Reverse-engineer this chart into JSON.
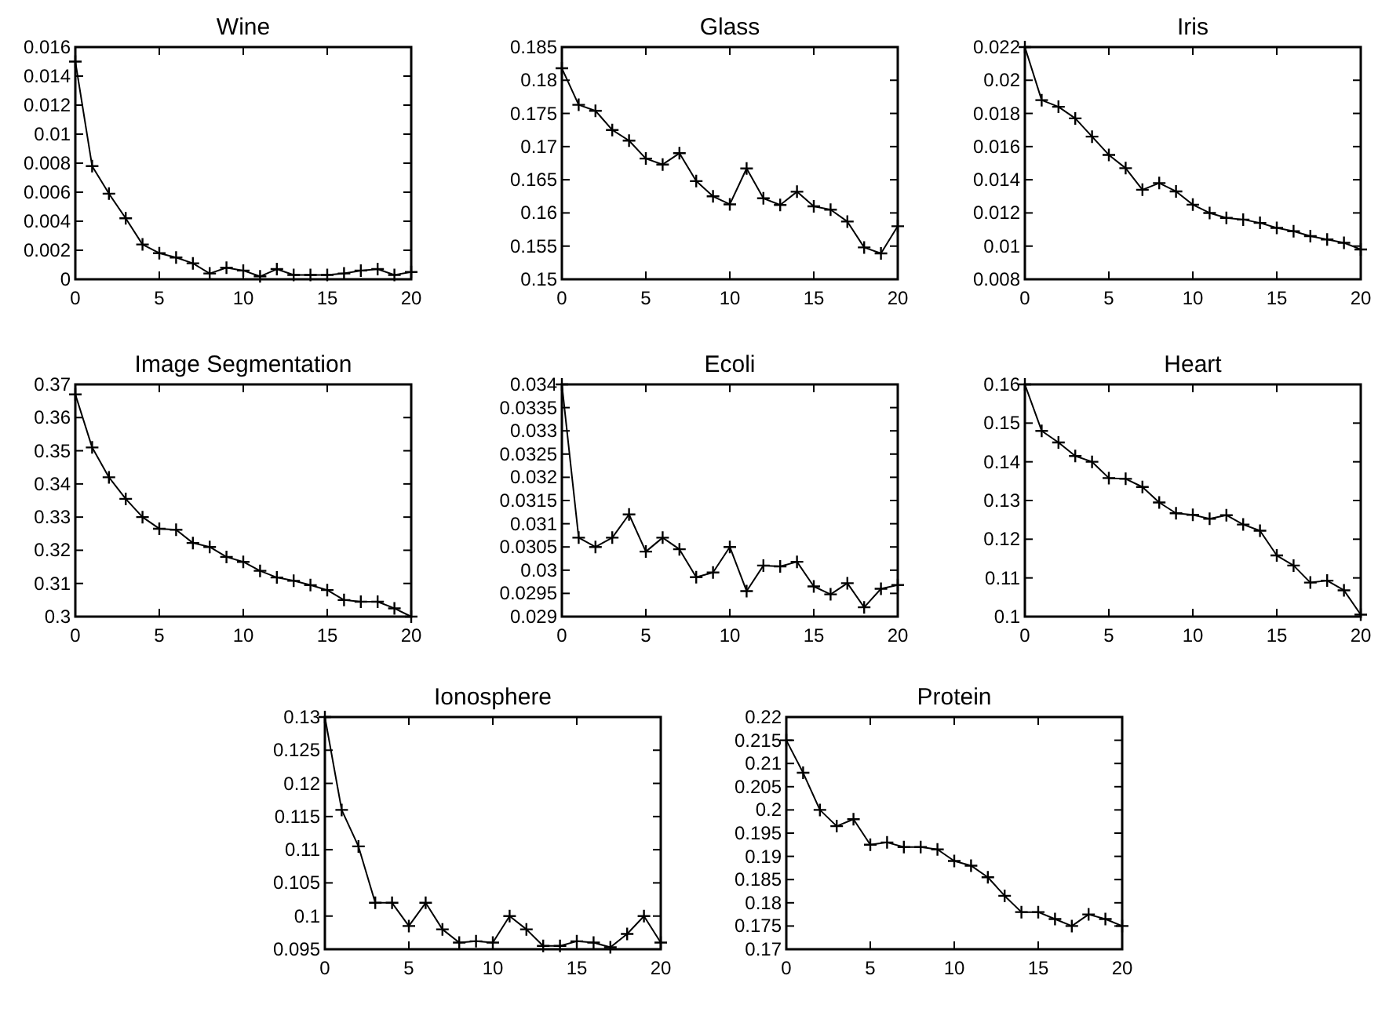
{
  "chart_data": [
    {
      "type": "line",
      "title": "Wine",
      "x": [
        0,
        1,
        2,
        3,
        4,
        5,
        6,
        7,
        8,
        9,
        10,
        11,
        12,
        13,
        14,
        15,
        16,
        17,
        18,
        19,
        20
      ],
      "series": [
        {
          "color": "#000000",
          "values": [
            0.015,
            0.0078,
            0.0059,
            0.0042,
            0.0024,
            0.0018,
            0.0015,
            0.0011,
            0.0004,
            0.0008,
            0.0006,
            0.0002,
            0.0007,
            0.0003,
            0.0003,
            0.0003,
            0.0004,
            0.0006,
            0.0007,
            0.0003,
            0.0005
          ]
        }
      ],
      "xlim": [
        0,
        20
      ],
      "xticks": [
        0,
        5,
        10,
        15,
        20
      ],
      "ylim": [
        0,
        0.016
      ],
      "yticks": [
        0,
        0.002,
        0.004,
        0.006,
        0.008,
        0.01,
        0.012,
        0.014,
        0.016
      ],
      "marker": "cross",
      "line_style": "solid",
      "grid": false
    },
    {
      "type": "line",
      "title": "Glass",
      "x": [
        0,
        1,
        2,
        3,
        4,
        5,
        6,
        7,
        8,
        9,
        10,
        11,
        12,
        13,
        14,
        15,
        16,
        17,
        18,
        19,
        20
      ],
      "series": [
        {
          "color": "#000000",
          "values": [
            0.1818,
            0.1763,
            0.1754,
            0.1725,
            0.1709,
            0.1682,
            0.1673,
            0.169,
            0.1648,
            0.1625,
            0.1613,
            0.1667,
            0.1622,
            0.1612,
            0.1632,
            0.161,
            0.1605,
            0.1587,
            0.1548,
            0.1539,
            0.158
          ]
        }
      ],
      "xlim": [
        0,
        20
      ],
      "xticks": [
        0,
        5,
        10,
        15,
        20
      ],
      "ylim": [
        0.15,
        0.185
      ],
      "yticks": [
        0.15,
        0.155,
        0.16,
        0.165,
        0.17,
        0.175,
        0.18,
        0.185
      ],
      "marker": "cross",
      "line_style": "solid",
      "grid": false
    },
    {
      "type": "line",
      "title": "Iris",
      "x": [
        0,
        1,
        2,
        3,
        4,
        5,
        6,
        7,
        8,
        9,
        10,
        11,
        12,
        13,
        14,
        15,
        16,
        17,
        18,
        19,
        20
      ],
      "series": [
        {
          "color": "#000000",
          "values": [
            0.022,
            0.0188,
            0.0184,
            0.0177,
            0.0166,
            0.0155,
            0.0147,
            0.0134,
            0.0138,
            0.0133,
            0.0125,
            0.012,
            0.0117,
            0.0116,
            0.0114,
            0.0111,
            0.0109,
            0.0106,
            0.0104,
            0.0102,
            0.0098
          ]
        }
      ],
      "xlim": [
        0,
        20
      ],
      "xticks": [
        0,
        5,
        10,
        15,
        20
      ],
      "ylim": [
        0.008,
        0.022
      ],
      "yticks": [
        0.008,
        0.01,
        0.012,
        0.014,
        0.016,
        0.018,
        0.02,
        0.022
      ],
      "marker": "cross",
      "line_style": "solid",
      "grid": false
    },
    {
      "type": "line",
      "title": "Image Segmentation",
      "x": [
        0,
        1,
        2,
        3,
        4,
        5,
        6,
        7,
        8,
        9,
        10,
        11,
        12,
        13,
        14,
        15,
        16,
        17,
        18,
        19,
        20
      ],
      "series": [
        {
          "color": "#000000",
          "values": [
            0.367,
            0.351,
            0.342,
            0.3355,
            0.33,
            0.3265,
            0.3262,
            0.3222,
            0.321,
            0.318,
            0.3165,
            0.3138,
            0.3118,
            0.3108,
            0.3095,
            0.308,
            0.305,
            0.3045,
            0.3045,
            0.3025,
            0.3
          ]
        }
      ],
      "xlim": [
        0,
        20
      ],
      "xticks": [
        0,
        5,
        10,
        15,
        20
      ],
      "ylim": [
        0.3,
        0.37
      ],
      "yticks": [
        0.3,
        0.31,
        0.32,
        0.33,
        0.34,
        0.35,
        0.36,
        0.37
      ],
      "marker": "cross",
      "line_style": "solid",
      "grid": false
    },
    {
      "type": "line",
      "title": "Ecoli",
      "x": [
        0,
        1,
        2,
        3,
        4,
        5,
        6,
        7,
        8,
        9,
        10,
        11,
        12,
        13,
        14,
        15,
        16,
        17,
        18,
        19,
        20
      ],
      "series": [
        {
          "color": "#000000",
          "values": [
            0.034,
            0.0307,
            0.0305,
            0.0307,
            0.0312,
            0.0304,
            0.0307,
            0.03045,
            0.02985,
            0.02995,
            0.0305,
            0.02955,
            0.0301,
            0.03008,
            0.03018,
            0.02965,
            0.02948,
            0.02972,
            0.0292,
            0.0296,
            0.02968
          ]
        }
      ],
      "xlim": [
        0,
        20
      ],
      "xticks": [
        0,
        5,
        10,
        15,
        20
      ],
      "ylim": [
        0.029,
        0.034
      ],
      "yticks": [
        0.029,
        0.0295,
        0.03,
        0.0305,
        0.031,
        0.0315,
        0.032,
        0.0325,
        0.033,
        0.0335,
        0.034
      ],
      "marker": "cross",
      "line_style": "solid",
      "grid": false
    },
    {
      "type": "line",
      "title": "Heart",
      "x": [
        0,
        1,
        2,
        3,
        4,
        5,
        6,
        7,
        8,
        9,
        10,
        11,
        12,
        13,
        14,
        15,
        16,
        17,
        18,
        19,
        20
      ],
      "series": [
        {
          "color": "#000000",
          "values": [
            0.16,
            0.148,
            0.145,
            0.1415,
            0.14,
            0.1358,
            0.1356,
            0.1335,
            0.1295,
            0.1267,
            0.1263,
            0.1253,
            0.1262,
            0.1238,
            0.1222,
            0.1158,
            0.1132,
            0.1088,
            0.1093,
            0.1068,
            0.1005
          ]
        }
      ],
      "xlim": [
        0,
        20
      ],
      "xticks": [
        0,
        5,
        10,
        15,
        20
      ],
      "ylim": [
        0.1,
        0.16
      ],
      "yticks": [
        0.1,
        0.11,
        0.12,
        0.13,
        0.14,
        0.15,
        0.16
      ],
      "marker": "cross",
      "line_style": "solid",
      "grid": false
    },
    {
      "type": "line",
      "title": "Ionosphere",
      "x": [
        0,
        1,
        2,
        3,
        4,
        5,
        6,
        7,
        8,
        9,
        10,
        11,
        12,
        13,
        14,
        15,
        16,
        17,
        18,
        19,
        20
      ],
      "series": [
        {
          "color": "#000000",
          "values": [
            0.13,
            0.116,
            0.1105,
            0.102,
            0.102,
            0.0985,
            0.102,
            0.098,
            0.096,
            0.0962,
            0.096,
            0.1,
            0.098,
            0.0955,
            0.0955,
            0.0962,
            0.096,
            0.0953,
            0.0973,
            0.1,
            0.096
          ]
        }
      ],
      "xlim": [
        0,
        20
      ],
      "xticks": [
        0,
        5,
        10,
        15,
        20
      ],
      "ylim": [
        0.095,
        0.13
      ],
      "yticks": [
        0.095,
        0.1,
        0.105,
        0.11,
        0.115,
        0.12,
        0.125,
        0.13
      ],
      "marker": "cross",
      "line_style": "solid",
      "grid": false
    },
    {
      "type": "line",
      "title": "Protein",
      "x": [
        0,
        1,
        2,
        3,
        4,
        5,
        6,
        7,
        8,
        9,
        10,
        11,
        12,
        13,
        14,
        15,
        16,
        17,
        18,
        19,
        20
      ],
      "series": [
        {
          "color": "#000000",
          "values": [
            0.215,
            0.208,
            0.2,
            0.1965,
            0.198,
            0.1925,
            0.193,
            0.192,
            0.192,
            0.1915,
            0.189,
            0.188,
            0.1855,
            0.1815,
            0.178,
            0.178,
            0.1765,
            0.175,
            0.1775,
            0.1765,
            0.175
          ]
        }
      ],
      "xlim": [
        0,
        20
      ],
      "xticks": [
        0,
        5,
        10,
        15,
        20
      ],
      "ylim": [
        0.17,
        0.22
      ],
      "yticks": [
        0.17,
        0.175,
        0.18,
        0.185,
        0.19,
        0.195,
        0.2,
        0.205,
        0.21,
        0.215,
        0.22
      ],
      "marker": "cross",
      "line_style": "solid",
      "grid": false
    }
  ]
}
